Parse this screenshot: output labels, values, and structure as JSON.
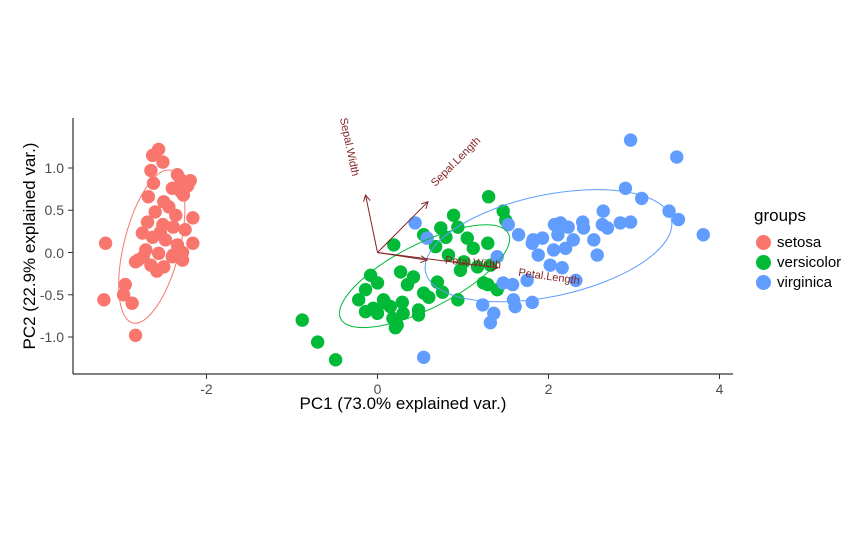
{
  "axes": {
    "x": {
      "label": "PC1 (73.0% explained var.)",
      "tick_labels": [
        "-2",
        "0",
        "2",
        "4"
      ],
      "tick_values": [
        -2,
        0,
        2,
        4
      ]
    },
    "y": {
      "label": "PC2 (22.9% explained var.)",
      "tick_labels": [
        "1.0",
        "0.5",
        "0.0",
        "-0.5",
        "-1.0"
      ],
      "tick_values": [
        1.0,
        0.5,
        0.0,
        -0.5,
        -1.0
      ]
    }
  },
  "legend": {
    "title": "groups",
    "items": [
      {
        "label": "setosa",
        "color": "#F8766D"
      },
      {
        "label": "versicolor",
        "color": "#00BA38"
      },
      {
        "label": "virginica",
        "color": "#619CFF"
      }
    ]
  },
  "chart_data": {
    "type": "scatter",
    "title": "",
    "xlabel": "PC1 (73.0% explained var.)",
    "ylabel": "PC2 (22.9% explained var.)",
    "xlim": [
      -3.55,
      4.16
    ],
    "ylim": [
      -1.44,
      1.49
    ],
    "grid": false,
    "legend_position": "right",
    "point_radius_px": 6.7,
    "series": [
      {
        "name": "setosa",
        "color": "#F8766D",
        "ellipse": {
          "cx": -2.64,
          "cy": 0.07,
          "a": 0.92,
          "b": 0.33,
          "angle": 76
        },
        "points": [
          [
            -2.63,
            1.15
          ],
          [
            -2.51,
            1.07
          ],
          [
            -2.65,
            0.97
          ],
          [
            -2.56,
            1.22
          ],
          [
            -2.34,
            0.92
          ],
          [
            -2.3,
            0.86
          ],
          [
            -2.19,
            0.85
          ],
          [
            -2.62,
            0.82
          ],
          [
            -2.22,
            0.79
          ],
          [
            -2.3,
            0.72
          ],
          [
            -2.27,
            0.68
          ],
          [
            -2.4,
            0.76
          ],
          [
            -2.68,
            0.66
          ],
          [
            -2.5,
            0.6
          ],
          [
            -2.44,
            0.54
          ],
          [
            -2.6,
            0.48
          ],
          [
            -2.36,
            0.44
          ],
          [
            -2.16,
            0.41
          ],
          [
            -2.69,
            0.36
          ],
          [
            -2.51,
            0.33
          ],
          [
            -2.39,
            0.3
          ],
          [
            -2.25,
            0.27
          ],
          [
            -2.54,
            0.24
          ],
          [
            -2.75,
            0.23
          ],
          [
            -3.18,
            0.11
          ],
          [
            -2.63,
            0.18
          ],
          [
            -2.48,
            0.15
          ],
          [
            -2.34,
            0.09
          ],
          [
            -2.16,
            0.11
          ],
          [
            -2.71,
            0.03
          ],
          [
            -2.56,
            -0.01
          ],
          [
            -2.4,
            -0.05
          ],
          [
            -2.28,
            -0.09
          ],
          [
            -2.8,
            -0.09
          ],
          [
            -2.65,
            -0.15
          ],
          [
            -2.5,
            -0.17
          ],
          [
            -2.83,
            -0.11
          ],
          [
            -2.74,
            -0.05
          ],
          [
            -2.39,
            -0.03
          ],
          [
            -2.28,
            0.0
          ],
          [
            -2.95,
            -0.38
          ],
          [
            -2.97,
            -0.5
          ],
          [
            -2.87,
            -0.6
          ],
          [
            -3.2,
            -0.56
          ],
          [
            -2.83,
            -0.98
          ],
          [
            -2.58,
            -0.22
          ]
        ]
      },
      {
        "name": "versicolor",
        "color": "#00BA38",
        "ellipse": {
          "cx": 0.55,
          "cy": -0.28,
          "a": 1.1,
          "b": 0.38,
          "angle": 27
        },
        "points": [
          [
            1.3,
            0.66
          ],
          [
            1.47,
            0.49
          ],
          [
            1.5,
            0.38
          ],
          [
            0.89,
            0.44
          ],
          [
            0.74,
            0.29
          ],
          [
            0.94,
            0.3
          ],
          [
            1.05,
            0.17
          ],
          [
            1.29,
            0.11
          ],
          [
            1.12,
            0.05
          ],
          [
            0.68,
            0.07
          ],
          [
            0.83,
            -0.03
          ],
          [
            1.01,
            -0.11
          ],
          [
            1.17,
            -0.17
          ],
          [
            1.32,
            -0.15
          ],
          [
            1.29,
            -0.38
          ],
          [
            1.4,
            -0.44
          ],
          [
            0.54,
            0.21
          ],
          [
            0.8,
            0.18
          ],
          [
            0.19,
            0.09
          ],
          [
            0.27,
            -0.23
          ],
          [
            0.35,
            -0.38
          ],
          [
            0.42,
            -0.29
          ],
          [
            -0.08,
            -0.27
          ],
          [
            -0.14,
            -0.44
          ],
          [
            0.0,
            -0.36
          ],
          [
            0.09,
            -0.6
          ],
          [
            0.0,
            -0.72
          ],
          [
            -0.14,
            -0.7
          ],
          [
            0.18,
            -0.78
          ],
          [
            0.3,
            -0.72
          ],
          [
            0.48,
            -0.68
          ],
          [
            0.21,
            -0.89
          ],
          [
            0.54,
            -0.48
          ],
          [
            0.7,
            -0.35
          ],
          [
            0.76,
            -0.47
          ],
          [
            0.97,
            -0.21
          ],
          [
            1.24,
            -0.36
          ],
          [
            -0.22,
            -0.56
          ],
          [
            -0.05,
            -0.66
          ],
          [
            0.07,
            -0.56
          ],
          [
            0.15,
            -0.64
          ],
          [
            0.23,
            -0.86
          ],
          [
            0.29,
            -0.59
          ],
          [
            0.48,
            -0.74
          ],
          [
            0.6,
            -0.53
          ],
          [
            0.94,
            -0.56
          ],
          [
            -0.88,
            -0.8
          ],
          [
            -0.7,
            -1.06
          ],
          [
            -0.49,
            -1.27
          ]
        ]
      },
      {
        "name": "virginica",
        "color": "#619CFF",
        "ellipse": {
          "cx": 2.0,
          "cy": 0.08,
          "a": 1.47,
          "b": 0.6,
          "angle": 12
        },
        "points": [
          [
            2.96,
            1.33
          ],
          [
            3.5,
            1.13
          ],
          [
            2.9,
            0.76
          ],
          [
            3.09,
            0.64
          ],
          [
            3.41,
            0.49
          ],
          [
            3.52,
            0.39
          ],
          [
            3.81,
            0.21
          ],
          [
            2.64,
            0.49
          ],
          [
            2.84,
            0.35
          ],
          [
            2.96,
            0.36
          ],
          [
            2.14,
            0.35
          ],
          [
            2.23,
            0.3
          ],
          [
            2.4,
            0.36
          ],
          [
            1.93,
            0.17
          ],
          [
            2.06,
            0.03
          ],
          [
            1.81,
            0.11
          ],
          [
            2.2,
            0.05
          ],
          [
            2.57,
            -0.03
          ],
          [
            2.02,
            -0.15
          ],
          [
            2.16,
            -0.18
          ],
          [
            2.07,
            0.33
          ],
          [
            2.41,
            0.29
          ],
          [
            2.63,
            0.33
          ],
          [
            2.11,
            0.21
          ],
          [
            2.29,
            0.15
          ],
          [
            2.53,
            0.15
          ],
          [
            2.69,
            0.29
          ],
          [
            0.44,
            0.35
          ],
          [
            0.58,
            0.17
          ],
          [
            1.53,
            0.33
          ],
          [
            1.65,
            0.21
          ],
          [
            1.82,
            0.15
          ],
          [
            1.88,
            -0.03
          ],
          [
            1.4,
            -0.05
          ],
          [
            1.47,
            -0.36
          ],
          [
            1.58,
            -0.38
          ],
          [
            1.23,
            -0.62
          ],
          [
            1.36,
            -0.72
          ],
          [
            1.32,
            -0.83
          ],
          [
            1.61,
            -0.64
          ],
          [
            1.75,
            -0.33
          ],
          [
            0.54,
            -1.24
          ],
          [
            1.59,
            -0.56
          ],
          [
            1.81,
            -0.59
          ],
          [
            2.32,
            -0.33
          ]
        ]
      }
    ],
    "loadings": {
      "color": "#832424",
      "arrows": [
        {
          "name": "Sepal.Width",
          "x": -0.14,
          "y": 0.68,
          "label": {
            "text": "Sepal.Width",
            "x": -0.33,
            "y": 1.25,
            "angle": -78
          }
        },
        {
          "name": "Sepal.Length",
          "x": 0.59,
          "y": 0.6,
          "label": {
            "text": "Sepal.Length",
            "x": 0.92,
            "y": 1.07,
            "angle": 45
          }
        },
        {
          "name": "Petal.Width",
          "x": 0.58,
          "y": -0.09,
          "label": {
            "text": "Petal.Width",
            "x": 1.12,
            "y": -0.12,
            "angle": -5
          }
        },
        {
          "name": "Petal.Length",
          "x": 1.41,
          "y": -0.18,
          "label": {
            "text": "Petal.Length",
            "x": 2.01,
            "y": -0.29,
            "angle": -8
          }
        }
      ]
    }
  }
}
